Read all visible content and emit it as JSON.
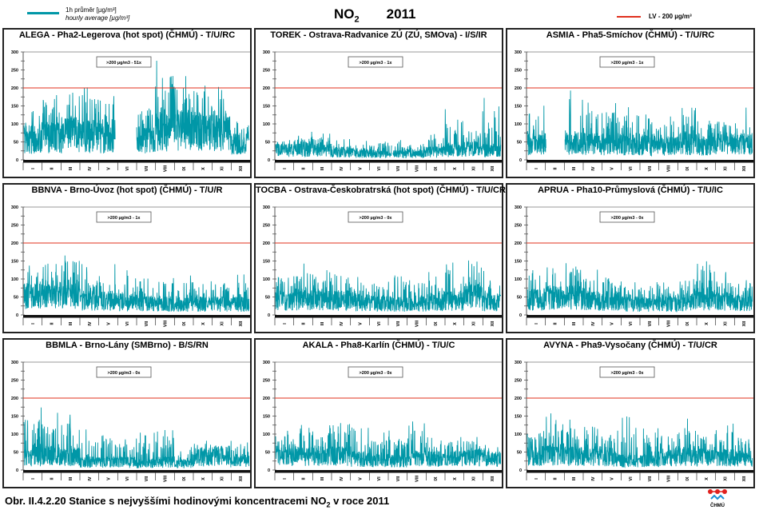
{
  "header": {
    "title_main": "NO",
    "title_sub": "2",
    "year": "2011",
    "legend_series_line1": "1h průměr [µg/m³]",
    "legend_series_line2": "hourly average [µg/m³]",
    "legend_limit": "LV -  200 µg/m³"
  },
  "colors": {
    "series": "#0097a7",
    "limit": "#e0301e",
    "axis": "#000000"
  },
  "caption": {
    "prefix": "Obr. II.4.2.20  Stanice s nejvyššími hodinovými koncentracemi NO",
    "sub": "2",
    "suffix": " v roce 2011"
  },
  "logo_label": "ČHMÚ",
  "chart_data": [
    {
      "type": "line",
      "title": "ALEGA - Pha2-Legerova (hot spot) (ČHMÚ) - T/U/RC",
      "exceed_label": ">200 µg/m3 - 51x",
      "ylim": [
        0,
        300
      ],
      "yticks": [
        0,
        50,
        100,
        150,
        200,
        250,
        300
      ],
      "limit": 200,
      "categories": [
        "I",
        "II",
        "III",
        "IV",
        "V",
        "VI",
        "VII",
        "VIII",
        "IX",
        "X",
        "XI",
        "XII"
      ],
      "monthly_mean": [
        65,
        70,
        80,
        75,
        70,
        null,
        60,
        90,
        95,
        90,
        85,
        50
      ],
      "monthly_max": [
        165,
        205,
        225,
        205,
        200,
        null,
        175,
        285,
        285,
        250,
        225,
        130
      ],
      "gaps": [
        [
          0.405,
          0.47
        ]
      ]
    },
    {
      "type": "line",
      "title": "TOREK - Ostrava-Radvanice ZÚ (ZÚ, SMOva) - I/S/IR",
      "exceed_label": ">200 µg/m3 - 1x",
      "ylim": [
        0,
        300
      ],
      "yticks": [
        0,
        50,
        100,
        150,
        200,
        250,
        300
      ],
      "limit": 200,
      "categories": [
        "I",
        "II",
        "III",
        "IV",
        "V",
        "VI",
        "VII",
        "VIII",
        "IX",
        "X",
        "XI",
        "XII"
      ],
      "monthly_mean": [
        30,
        35,
        30,
        25,
        22,
        20,
        18,
        20,
        25,
        30,
        35,
        30
      ],
      "monthly_max": [
        65,
        80,
        75,
        60,
        55,
        55,
        55,
        55,
        75,
        145,
        105,
        240
      ],
      "gaps": [
        [
          0.515,
          0.52
        ]
      ]
    },
    {
      "type": "line",
      "title": "ASMIA - Pha5-Smíchov (ČHMÚ) - T/U/RC",
      "exceed_label": ">200 µg/m3 - 1x",
      "ylim": [
        0,
        300
      ],
      "yticks": [
        0,
        50,
        100,
        150,
        200,
        250,
        300
      ],
      "limit": 200,
      "categories": [
        "I",
        "II",
        "III",
        "IV",
        "V",
        "VI",
        "VII",
        "VIII",
        "IX",
        "X",
        "XI",
        "XII"
      ],
      "monthly_mean": [
        50,
        null,
        55,
        50,
        50,
        50,
        45,
        45,
        50,
        45,
        50,
        50
      ],
      "monthly_max": [
        155,
        null,
        212,
        165,
        160,
        150,
        130,
        125,
        150,
        120,
        130,
        160
      ],
      "gaps": [
        [
          0.095,
          0.145
        ]
      ]
    },
    {
      "type": "line",
      "title": "BBNVA - Brno-Úvoz (hot spot) (ČHMÚ) - T/U/R",
      "exceed_label": ">200 µg/m3 - 1x",
      "ylim": [
        0,
        300
      ],
      "yticks": [
        0,
        50,
        100,
        150,
        200,
        250,
        300
      ],
      "limit": 200,
      "categories": [
        "I",
        "II",
        "III",
        "IV",
        "V",
        "VI",
        "VII",
        "VIII",
        "IX",
        "X",
        "XI",
        "XII"
      ],
      "monthly_mean": [
        60,
        65,
        65,
        45,
        45,
        40,
        35,
        35,
        35,
        35,
        35,
        35
      ],
      "monthly_max": [
        145,
        170,
        200,
        155,
        145,
        135,
        125,
        115,
        115,
        100,
        110,
        115
      ],
      "gaps": []
    },
    {
      "type": "line",
      "title": "TOCBA - Ostrava-Českobratrská (hot spot) (ČHMÚ) - T/U/CR",
      "exceed_label": ">200 µg/m3 - 0x",
      "ylim": [
        0,
        300
      ],
      "yticks": [
        0,
        50,
        100,
        150,
        200,
        250,
        300
      ],
      "limit": 200,
      "categories": [
        "I",
        "II",
        "III",
        "IV",
        "V",
        "VI",
        "VII",
        "VIII",
        "IX",
        "X",
        "XI",
        "XII"
      ],
      "monthly_mean": [
        45,
        50,
        50,
        45,
        40,
        35,
        35,
        35,
        40,
        45,
        60,
        40
      ],
      "monthly_max": [
        130,
        150,
        130,
        140,
        110,
        110,
        115,
        110,
        120,
        155,
        185,
        125
      ],
      "gaps": []
    },
    {
      "type": "line",
      "title": "APRUA - Pha10-Průmyslová (ČHMÚ) - T/U/IC",
      "exceed_label": ">200 µg/m3 - 0x",
      "ylim": [
        0,
        300
      ],
      "yticks": [
        0,
        50,
        100,
        150,
        200,
        250,
        300
      ],
      "limit": 200,
      "categories": [
        "I",
        "II",
        "III",
        "IV",
        "V",
        "VI",
        "VII",
        "VIII",
        "IX",
        "X",
        "XI",
        "XII"
      ],
      "monthly_mean": [
        50,
        55,
        55,
        45,
        45,
        35,
        35,
        35,
        40,
        50,
        45,
        40
      ],
      "monthly_max": [
        145,
        165,
        150,
        130,
        125,
        105,
        110,
        100,
        115,
        155,
        120,
        120
      ],
      "gaps": []
    },
    {
      "type": "line",
      "title": "BBMLA - Brno-Lány (SMBrno) - B/S/RN",
      "exceed_label": ">200 µg/m3 - 0x",
      "ylim": [
        0,
        300
      ],
      "yticks": [
        0,
        50,
        100,
        150,
        200,
        250,
        300
      ],
      "limit": 200,
      "categories": [
        "I",
        "II",
        "III",
        "IV",
        "V",
        "VI",
        "VII",
        "VIII",
        "IX",
        "X",
        "XI",
        "XII"
      ],
      "monthly_mean": [
        40,
        45,
        40,
        25,
        25,
        25,
        20,
        25,
        20,
        40,
        45,
        30
      ],
      "monthly_max": [
        180,
        165,
        160,
        130,
        110,
        90,
        105,
        120,
        70,
        85,
        80,
        90
      ],
      "gaps": []
    },
    {
      "type": "line",
      "title": "AKALA - Pha8-Karlín (ČHMÚ) - T/U/C",
      "exceed_label": ">200 µg/m3 - 0x",
      "ylim": [
        0,
        300
      ],
      "yticks": [
        0,
        50,
        100,
        150,
        200,
        250,
        300
      ],
      "limit": 200,
      "categories": [
        "I",
        "II",
        "III",
        "IV",
        "V",
        "VI",
        "VII",
        "VIII",
        "IX",
        "X",
        "XI",
        "XII"
      ],
      "monthly_mean": [
        45,
        45,
        45,
        45,
        35,
        30,
        30,
        35,
        35,
        35,
        40,
        35
      ],
      "monthly_max": [
        120,
        130,
        145,
        160,
        120,
        105,
        120,
        135,
        100,
        95,
        95,
        90
      ],
      "gaps": []
    },
    {
      "type": "line",
      "title": "AVYNA - Pha9-Vysočany (ČHMÚ) - T/U/CR",
      "exceed_label": ">200 µg/m3 - 0x",
      "ylim": [
        0,
        300
      ],
      "yticks": [
        0,
        50,
        100,
        150,
        200,
        250,
        300
      ],
      "limit": 200,
      "categories": [
        "I",
        "II",
        "III",
        "IV",
        "V",
        "VI",
        "VII",
        "VIII",
        "IX",
        "X",
        "XI",
        "XII"
      ],
      "monthly_mean": [
        45,
        50,
        45,
        45,
        35,
        30,
        30,
        40,
        45,
        40,
        40,
        35
      ],
      "monthly_max": [
        130,
        160,
        145,
        150,
        110,
        150,
        120,
        120,
        145,
        110,
        130,
        110
      ],
      "gaps": []
    }
  ]
}
